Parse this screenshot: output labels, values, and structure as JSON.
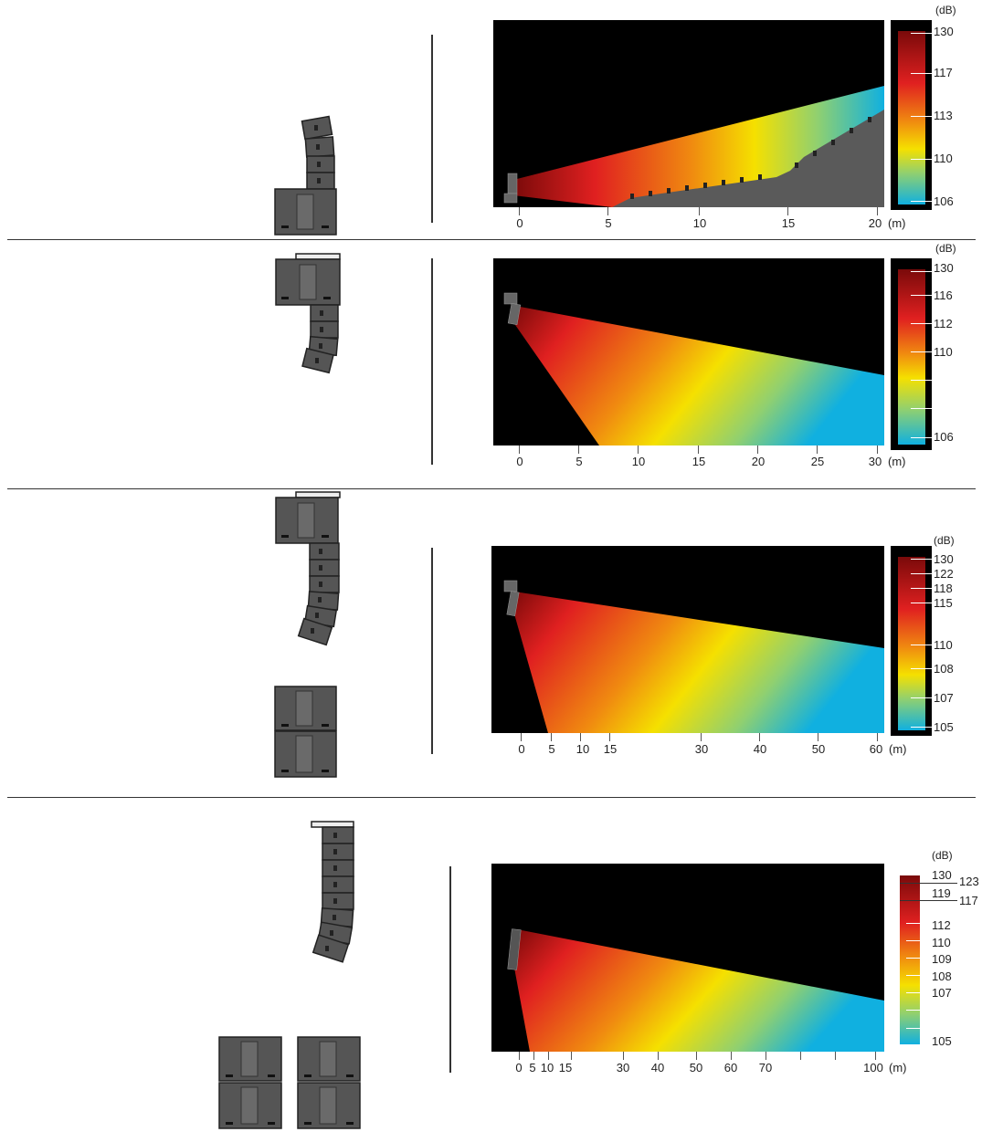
{
  "panels": [
    {
      "x_ticks": [
        "0",
        "5",
        "10",
        "15",
        "20"
      ],
      "x_unit": "(m)",
      "db_unit": "(dB)",
      "colorbar": [
        "130",
        "117",
        "113",
        "110",
        "106"
      ]
    },
    {
      "x_ticks": [
        "0",
        "5",
        "10",
        "15",
        "20",
        "25",
        "30"
      ],
      "x_unit": "(m)",
      "db_unit": "(dB)",
      "colorbar": [
        "130",
        "116",
        "112",
        "110",
        "106"
      ]
    },
    {
      "x_ticks": [
        "0",
        "5",
        "10",
        "15",
        "30",
        "40",
        "50",
        "60"
      ],
      "x_unit": "(m)",
      "db_unit": "(dB)",
      "colorbar": [
        "130",
        "122",
        "118",
        "115",
        "110",
        "108",
        "107",
        "105"
      ]
    },
    {
      "x_ticks": [
        "0",
        "5",
        "10",
        "15",
        "30",
        "40",
        "50",
        "60",
        "70",
        "100"
      ],
      "x_unit": "(m)",
      "db_unit": "(dB)",
      "colorbar": [
        "130",
        "119",
        "112",
        "110",
        "109",
        "108",
        "107",
        "105"
      ],
      "colorbar_side": [
        "123",
        "117"
      ]
    }
  ],
  "colors": {
    "max": "#7a0a0a",
    "red": "#e02020",
    "orange": "#f08a10",
    "yellow": "#f5e000",
    "cyan": "#10b0e0",
    "stage": "#5a5a5a"
  }
}
